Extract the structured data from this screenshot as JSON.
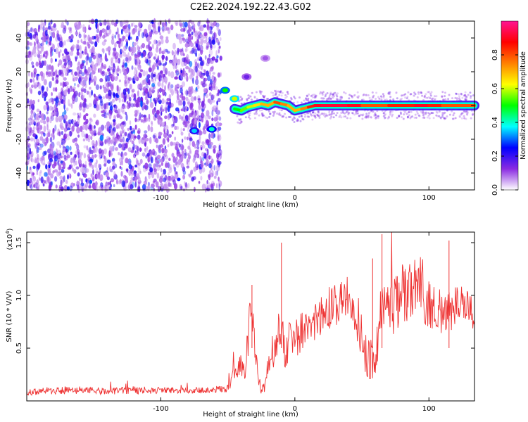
{
  "title": "C2E2.2024.192.22.43.G02",
  "chart_data": [
    {
      "type": "heatmap",
      "xlabel": "Height of straight line (km)",
      "ylabel": "Frequency (Hz)",
      "xlim": [
        -200,
        134
      ],
      "ylim": [
        -50,
        50
      ],
      "x_ticks": [
        -100,
        0,
        100
      ],
      "y_ticks": [
        -40,
        -20,
        0,
        20,
        40
      ],
      "colorbar": {
        "label": "Normalized spectral amplitude",
        "range": [
          0,
          1
        ],
        "ticks": [
          0.0,
          0.2,
          0.4,
          0.6,
          0.8
        ],
        "colors": [
          "#ffffff",
          "#8a2be2",
          "#0000ff",
          "#00ffff",
          "#00ff00",
          "#ffff00",
          "#ff8000",
          "#ff0000",
          "#ff1493"
        ]
      },
      "noise_region_x": [
        -200,
        -55
      ],
      "features": [
        {
          "x": -75,
          "y": -15,
          "amplitude": 0.35
        },
        {
          "x": -62,
          "y": -14,
          "amplitude": 0.4
        },
        {
          "x": -52,
          "y": 9,
          "amplitude": 0.5
        },
        {
          "x": -45,
          "y": 4,
          "amplitude": 0.6
        },
        {
          "x": -36,
          "y": 17,
          "amplitude": 0.15
        },
        {
          "x": -22,
          "y": 28,
          "amplitude": 0.1
        }
      ],
      "ridge": {
        "x": [
          -45,
          -40,
          -35,
          -30,
          -25,
          -20,
          -15,
          -10,
          -5,
          0,
          5,
          10,
          15,
          20,
          30,
          40,
          50,
          60,
          70,
          80,
          90,
          100,
          110,
          120,
          134
        ],
        "y": [
          -2,
          -3,
          -1,
          0,
          1,
          0,
          2,
          1,
          0,
          -3,
          -2,
          -1,
          0,
          0,
          0,
          0,
          0,
          0,
          0,
          0,
          0,
          0,
          0,
          0,
          0
        ],
        "amplitude": [
          0.5,
          0.55,
          0.6,
          0.65,
          0.7,
          0.7,
          0.8,
          0.75,
          0.7,
          0.7,
          0.75,
          0.85,
          0.9,
          0.92,
          0.92,
          0.9,
          0.8,
          0.8,
          0.85,
          0.85,
          0.9,
          0.85,
          0.8,
          0.8,
          0.75
        ]
      }
    },
    {
      "type": "line",
      "xlabel": "Height of straight line (km)",
      "ylabel": "SNR (10 * V/V)",
      "y_multiplier": "(x10",
      "y_multiplier_exp": "4",
      "xlim": [
        -200,
        134
      ],
      "ylim": [
        0,
        1.6
      ],
      "x_ticks": [
        -100,
        0,
        100
      ],
      "y_ticks": [
        0.5,
        1.0,
        1.5
      ],
      "color": "#ee3333",
      "series": [
        {
          "x": [
            -200,
            -180,
            -160,
            -140,
            -120,
            -100,
            -80,
            -60,
            -50,
            -45,
            -40,
            -38,
            -35,
            -33,
            -30,
            -28,
            -25,
            -22,
            -20,
            -15,
            -12,
            -10,
            -8,
            -5,
            0,
            10,
            20,
            25,
            30,
            35,
            40,
            45,
            50,
            55,
            60,
            65,
            70,
            75,
            80,
            85,
            90,
            95,
            100,
            105,
            110,
            115,
            120,
            125,
            130,
            134
          ],
          "y": [
            0.08,
            0.1,
            0.1,
            0.09,
            0.1,
            0.1,
            0.1,
            0.1,
            0.12,
            0.3,
            0.35,
            0.25,
            0.55,
            0.95,
            0.5,
            0.3,
            0.05,
            0.2,
            0.3,
            0.55,
            0.6,
            0.7,
            0.45,
            0.55,
            0.6,
            0.7,
            0.82,
            0.88,
            0.9,
            0.95,
            1.0,
            0.9,
            0.55,
            0.4,
            0.4,
            0.95,
            0.85,
            0.9,
            1.0,
            1.05,
            1.1,
            1.0,
            0.95,
            0.9,
            0.8,
            0.85,
            0.9,
            0.95,
            0.9,
            0.85
          ],
          "noise": [
            0.03,
            0.04,
            0.04,
            0.03,
            0.04,
            0.03,
            0.03,
            0.03,
            0.05,
            0.1,
            0.1,
            0.1,
            0.2,
            0.2,
            0.15,
            0.1,
            0.05,
            0.1,
            0.15,
            0.2,
            0.25,
            0.2,
            0.2,
            0.2,
            0.2,
            0.2,
            0.2,
            0.2,
            0.2,
            0.2,
            0.2,
            0.25,
            0.25,
            0.2,
            0.2,
            0.3,
            0.25,
            0.3,
            0.3,
            0.3,
            0.25,
            0.25,
            0.25,
            0.25,
            0.2,
            0.2,
            0.2,
            0.2,
            0.2,
            0.2
          ]
        }
      ]
    }
  ]
}
